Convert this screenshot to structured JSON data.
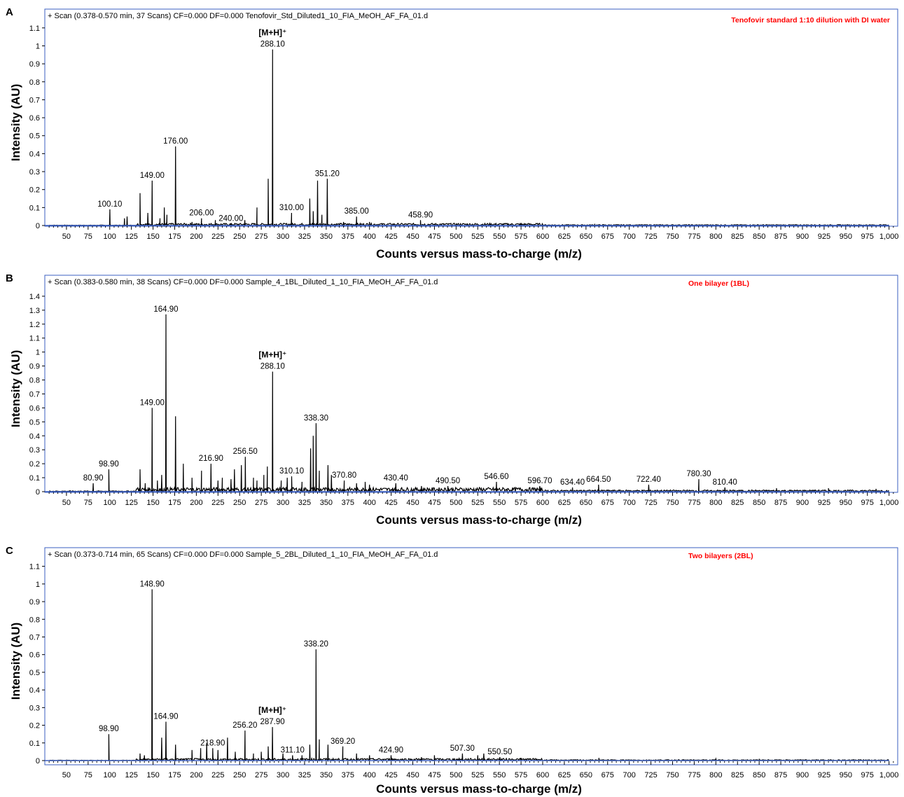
{
  "chart_data": [
    {
      "panel": "A",
      "type": "line",
      "header": "+ Scan (0.378-0.570 min, 37 Scans) CF=0.000 DF=0.000 Tenofovir_Std_Diluted1_10_FIA_MeOH_AF_FA_01.d",
      "annotation": "Tenofovir standard 1:10 dilution with DI water",
      "ion_label": "[M+H]⁺",
      "ion_mz": 288.1,
      "xlabel": "Counts versus mass-to-charge (m/z)",
      "ylabel": "Intensity (AU)",
      "xlim": [
        25,
        1010
      ],
      "ylim": [
        0,
        1.15
      ],
      "yticks": [
        "0",
        "0.1",
        "0.2",
        "0.3",
        "0.4",
        "0.5",
        "0.6",
        "0.7",
        "0.8",
        "0.9",
        "1",
        "1.1"
      ],
      "xticks": [
        "50",
        "75",
        "100",
        "125",
        "150",
        "175",
        "200",
        "225",
        "250",
        "275",
        "300",
        "325",
        "350",
        "375",
        "400",
        "425",
        "450",
        "475",
        "500",
        "525",
        "550",
        "575",
        "600",
        "625",
        "650",
        "675",
        "700",
        "725",
        "750",
        "775",
        "800",
        "825",
        "850",
        "875",
        "900",
        "925",
        "950",
        "975",
        "1,000"
      ],
      "peaks": [
        {
          "x": 100.1,
          "y": 0.09,
          "label": "100.10"
        },
        {
          "x": 117,
          "y": 0.04
        },
        {
          "x": 120,
          "y": 0.05
        },
        {
          "x": 135,
          "y": 0.18
        },
        {
          "x": 144,
          "y": 0.07
        },
        {
          "x": 149.0,
          "y": 0.25,
          "label": "149.00"
        },
        {
          "x": 158,
          "y": 0.04
        },
        {
          "x": 163,
          "y": 0.1
        },
        {
          "x": 166,
          "y": 0.06
        },
        {
          "x": 176.0,
          "y": 0.44,
          "label": "176.00"
        },
        {
          "x": 195,
          "y": 0.02
        },
        {
          "x": 206.0,
          "y": 0.04,
          "label": "206.00"
        },
        {
          "x": 222,
          "y": 0.03
        },
        {
          "x": 240.0,
          "y": 0.01,
          "label": "240.00"
        },
        {
          "x": 256,
          "y": 0.03
        },
        {
          "x": 270,
          "y": 0.1
        },
        {
          "x": 283,
          "y": 0.26
        },
        {
          "x": 288.1,
          "y": 0.98,
          "label": "288.10"
        },
        {
          "x": 310.0,
          "y": 0.07,
          "label": "310.00"
        },
        {
          "x": 331,
          "y": 0.15
        },
        {
          "x": 335,
          "y": 0.08
        },
        {
          "x": 340,
          "y": 0.25
        },
        {
          "x": 345,
          "y": 0.06
        },
        {
          "x": 351.2,
          "y": 0.26,
          "label": "351.20"
        },
        {
          "x": 370,
          "y": 0.02
        },
        {
          "x": 385.0,
          "y": 0.05,
          "label": "385.00"
        },
        {
          "x": 400,
          "y": 0.02
        },
        {
          "x": 458.9,
          "y": 0.03,
          "label": "458.90"
        },
        {
          "x": 575,
          "y": 0.005
        },
        {
          "x": 660,
          "y": 0.006
        },
        {
          "x": 800,
          "y": 0.005
        },
        {
          "x": 950,
          "y": 0.004
        }
      ]
    },
    {
      "panel": "B",
      "type": "line",
      "header": "+ Scan (0.383-0.580 min, 38 Scans) CF=0.000 DF=0.000 Sample_4_1BL_Diluted_1_10_FIA_MeOH_AF_FA_01.d",
      "annotation": "One bilayer (1BL)",
      "ion_label": "[M+H]⁺",
      "ion_mz": 288.1,
      "xlabel": "Counts versus mass-to-charge (m/z)",
      "ylabel": "Intensity (AU)",
      "xlim": [
        25,
        1010
      ],
      "ylim": [
        0,
        1.48
      ],
      "yticks": [
        "0",
        "0.1",
        "0.2",
        "0.3",
        "0.4",
        "0.5",
        "0.6",
        "0.7",
        "0.8",
        "0.9",
        "1",
        "1.1",
        "1.2",
        "1.3",
        "1.4"
      ],
      "xticks": [
        "50",
        "75",
        "100",
        "125",
        "150",
        "175",
        "200",
        "225",
        "250",
        "275",
        "300",
        "325",
        "350",
        "375",
        "400",
        "425",
        "450",
        "475",
        "500",
        "525",
        "550",
        "575",
        "600",
        "625",
        "650",
        "675",
        "700",
        "725",
        "750",
        "775",
        "800",
        "825",
        "850",
        "875",
        "900",
        "925",
        "950",
        "975",
        "1,000"
      ],
      "peaks": [
        {
          "x": 80.9,
          "y": 0.06,
          "label": "80.90"
        },
        {
          "x": 98.9,
          "y": 0.16,
          "label": "98.90"
        },
        {
          "x": 135,
          "y": 0.16
        },
        {
          "x": 141,
          "y": 0.06
        },
        {
          "x": 149.0,
          "y": 0.6,
          "label": "149.00"
        },
        {
          "x": 155,
          "y": 0.08
        },
        {
          "x": 160,
          "y": 0.12
        },
        {
          "x": 164.9,
          "y": 1.27,
          "label": "164.90"
        },
        {
          "x": 176,
          "y": 0.54
        },
        {
          "x": 185,
          "y": 0.2
        },
        {
          "x": 195,
          "y": 0.1
        },
        {
          "x": 206,
          "y": 0.15
        },
        {
          "x": 216.9,
          "y": 0.2,
          "label": "216.90"
        },
        {
          "x": 225,
          "y": 0.08
        },
        {
          "x": 230,
          "y": 0.1
        },
        {
          "x": 240,
          "y": 0.09
        },
        {
          "x": 244,
          "y": 0.16
        },
        {
          "x": 252,
          "y": 0.19
        },
        {
          "x": 256.5,
          "y": 0.25,
          "label": "256.50"
        },
        {
          "x": 266,
          "y": 0.1
        },
        {
          "x": 270,
          "y": 0.08
        },
        {
          "x": 278,
          "y": 0.12
        },
        {
          "x": 282,
          "y": 0.18
        },
        {
          "x": 288.1,
          "y": 0.86,
          "label": "288.10"
        },
        {
          "x": 298,
          "y": 0.08
        },
        {
          "x": 305,
          "y": 0.1
        },
        {
          "x": 310.1,
          "y": 0.11,
          "label": "310.10"
        },
        {
          "x": 322,
          "y": 0.07
        },
        {
          "x": 332,
          "y": 0.31
        },
        {
          "x": 335,
          "y": 0.4
        },
        {
          "x": 338.3,
          "y": 0.49,
          "label": "338.30"
        },
        {
          "x": 342,
          "y": 0.15
        },
        {
          "x": 352,
          "y": 0.19
        },
        {
          "x": 356,
          "y": 0.12
        },
        {
          "x": 370.8,
          "y": 0.08,
          "label": "370.80"
        },
        {
          "x": 385,
          "y": 0.06
        },
        {
          "x": 395,
          "y": 0.07
        },
        {
          "x": 400,
          "y": 0.05
        },
        {
          "x": 430.4,
          "y": 0.06,
          "label": "430.40"
        },
        {
          "x": 460,
          "y": 0.04
        },
        {
          "x": 490.5,
          "y": 0.04,
          "label": "490.50"
        },
        {
          "x": 546.6,
          "y": 0.07,
          "label": "546.60"
        },
        {
          "x": 596.7,
          "y": 0.04,
          "label": "596.70"
        },
        {
          "x": 634.4,
          "y": 0.03,
          "label": "634.40"
        },
        {
          "x": 664.5,
          "y": 0.05,
          "label": "664.50"
        },
        {
          "x": 722.4,
          "y": 0.05,
          "label": "722.40"
        },
        {
          "x": 780.3,
          "y": 0.09,
          "label": "780.30"
        },
        {
          "x": 810.4,
          "y": 0.03,
          "label": "810.40"
        },
        {
          "x": 870,
          "y": 0.025
        },
        {
          "x": 930,
          "y": 0.025
        },
        {
          "x": 985,
          "y": 0.02
        }
      ]
    },
    {
      "panel": "C",
      "type": "line",
      "header": "+ Scan (0.373-0.714 min, 65 Scans) CF=0.000 DF=0.000 Sample_5_2BL_Diluted_1_10_FIA_MeOH_AF_FA_01.d",
      "annotation": "Two bilayers (2BL)",
      "ion_label": "[M+H]⁺",
      "ion_mz": 287.9,
      "xlabel": "Counts versus mass-to-charge (m/z)",
      "ylabel": "Intensity (AU)",
      "xlim": [
        25,
        1010
      ],
      "ylim": [
        0,
        1.15
      ],
      "yticks": [
        "0",
        "0.1",
        "0.2",
        "0.3",
        "0.4",
        "0.5",
        "0.6",
        "0.7",
        "0.8",
        "0.9",
        "1",
        "1.1"
      ],
      "xticks": [
        "50",
        "75",
        "100",
        "125",
        "150",
        "175",
        "200",
        "225",
        "250",
        "275",
        "300",
        "325",
        "350",
        "375",
        "400",
        "425",
        "450",
        "475",
        "500",
        "525",
        "550",
        "575",
        "600",
        "625",
        "650",
        "675",
        "700",
        "725",
        "750",
        "775",
        "800",
        "825",
        "850",
        "875",
        "900",
        "925",
        "950",
        "975",
        "1,000"
      ],
      "peaks": [
        {
          "x": 98.9,
          "y": 0.15,
          "label": "98.90"
        },
        {
          "x": 135,
          "y": 0.04
        },
        {
          "x": 140,
          "y": 0.03
        },
        {
          "x": 148.9,
          "y": 0.97,
          "label": "148.90"
        },
        {
          "x": 160,
          "y": 0.13
        },
        {
          "x": 164.9,
          "y": 0.22,
          "label": "164.90"
        },
        {
          "x": 176,
          "y": 0.09
        },
        {
          "x": 195,
          "y": 0.06
        },
        {
          "x": 205,
          "y": 0.07
        },
        {
          "x": 212,
          "y": 0.1
        },
        {
          "x": 218.9,
          "y": 0.07,
          "label": "218.90"
        },
        {
          "x": 225,
          "y": 0.06
        },
        {
          "x": 236,
          "y": 0.13
        },
        {
          "x": 245,
          "y": 0.05
        },
        {
          "x": 256.2,
          "y": 0.17,
          "label": "256.20"
        },
        {
          "x": 266,
          "y": 0.04
        },
        {
          "x": 275,
          "y": 0.05
        },
        {
          "x": 283,
          "y": 0.08
        },
        {
          "x": 287.9,
          "y": 0.19,
          "label": "287.90"
        },
        {
          "x": 300,
          "y": 0.04
        },
        {
          "x": 311.1,
          "y": 0.03,
          "label": "311.10"
        },
        {
          "x": 322,
          "y": 0.03
        },
        {
          "x": 331,
          "y": 0.09
        },
        {
          "x": 338.2,
          "y": 0.63,
          "label": "338.20"
        },
        {
          "x": 342,
          "y": 0.12
        },
        {
          "x": 352,
          "y": 0.09
        },
        {
          "x": 369.2,
          "y": 0.08,
          "label": "369.20"
        },
        {
          "x": 385,
          "y": 0.04
        },
        {
          "x": 400,
          "y": 0.03
        },
        {
          "x": 424.9,
          "y": 0.03,
          "label": "424.90"
        },
        {
          "x": 460,
          "y": 0.02
        },
        {
          "x": 475,
          "y": 0.03
        },
        {
          "x": 507.3,
          "y": 0.04,
          "label": "507.30"
        },
        {
          "x": 525,
          "y": 0.03
        },
        {
          "x": 532,
          "y": 0.04
        },
        {
          "x": 550.5,
          "y": 0.02,
          "label": "550.50"
        },
        {
          "x": 575,
          "y": 0.015
        },
        {
          "x": 665,
          "y": 0.015
        },
        {
          "x": 800,
          "y": 0.01
        },
        {
          "x": 850,
          "y": 0.01
        }
      ]
    }
  ]
}
